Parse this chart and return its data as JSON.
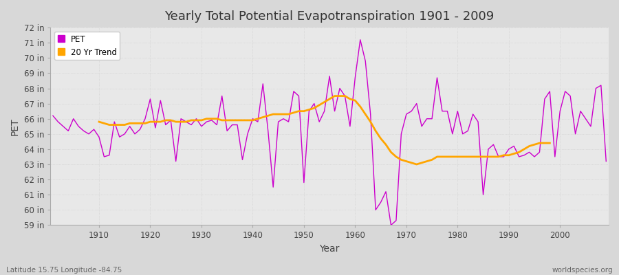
{
  "title": "Yearly Total Potential Evapotranspiration 1901 - 2009",
  "xlabel": "Year",
  "ylabel": "PET",
  "subtitle_left": "Latitude 15.75 Longitude -84.75",
  "subtitle_right": "worldspecies.org",
  "background_color": "#d8d8d8",
  "plot_bg_color": "#e8e8e8",
  "pet_color": "#cc00cc",
  "trend_color": "#ffa500",
  "ylim": [
    59,
    72
  ],
  "ytick_labels": [
    "59 in",
    "60 in",
    "61 in",
    "62 in",
    "63 in",
    "64 in",
    "65 in",
    "66 in",
    "67 in",
    "68 in",
    "69 in",
    "70 in",
    "71 in",
    "72 in"
  ],
  "ytick_values": [
    59,
    60,
    61,
    62,
    63,
    64,
    65,
    66,
    67,
    68,
    69,
    70,
    71,
    72
  ],
  "years": [
    1901,
    1902,
    1903,
    1904,
    1905,
    1906,
    1907,
    1908,
    1909,
    1910,
    1911,
    1912,
    1913,
    1914,
    1915,
    1916,
    1917,
    1918,
    1919,
    1920,
    1921,
    1922,
    1923,
    1924,
    1925,
    1926,
    1927,
    1928,
    1929,
    1930,
    1931,
    1932,
    1933,
    1934,
    1935,
    1936,
    1937,
    1938,
    1939,
    1940,
    1941,
    1942,
    1943,
    1944,
    1945,
    1946,
    1947,
    1948,
    1949,
    1950,
    1951,
    1952,
    1953,
    1954,
    1955,
    1956,
    1957,
    1958,
    1959,
    1960,
    1961,
    1962,
    1963,
    1964,
    1965,
    1966,
    1967,
    1968,
    1969,
    1970,
    1971,
    1972,
    1973,
    1974,
    1975,
    1976,
    1977,
    1978,
    1979,
    1980,
    1981,
    1982,
    1983,
    1984,
    1985,
    1986,
    1987,
    1988,
    1989,
    1990,
    1991,
    1992,
    1993,
    1994,
    1995,
    1996,
    1997,
    1998,
    1999,
    2000,
    2001,
    2002,
    2003,
    2004,
    2005,
    2006,
    2007,
    2008,
    2009
  ],
  "pet_values": [
    66.2,
    65.8,
    65.5,
    65.2,
    66.0,
    65.5,
    65.2,
    65.0,
    65.3,
    64.8,
    63.5,
    63.6,
    65.8,
    64.8,
    65.0,
    65.5,
    65.0,
    65.3,
    66.0,
    67.3,
    65.4,
    67.2,
    65.6,
    65.9,
    63.2,
    66.0,
    65.8,
    65.6,
    66.0,
    65.5,
    65.8,
    65.9,
    65.6,
    67.5,
    65.2,
    65.6,
    65.6,
    63.3,
    65.0,
    66.0,
    65.8,
    68.3,
    65.2,
    61.5,
    65.8,
    66.0,
    65.8,
    67.8,
    67.5,
    61.8,
    66.5,
    67.0,
    65.8,
    66.5,
    68.8,
    66.5,
    68.0,
    67.5,
    65.5,
    68.7,
    71.2,
    69.8,
    66.3,
    60.0,
    60.5,
    61.2,
    59.0,
    59.3,
    65.0,
    66.3,
    66.5,
    67.0,
    65.5,
    66.0,
    66.0,
    68.7,
    66.5,
    66.5,
    65.0,
    66.5,
    65.0,
    65.2,
    66.3,
    65.8,
    61.0,
    64.0,
    64.3,
    63.5,
    63.5,
    64.0,
    64.2,
    63.5,
    63.6,
    63.8,
    63.5,
    63.8,
    67.3,
    67.8,
    63.5,
    66.5,
    67.8,
    67.5,
    65.0,
    66.5,
    66.0,
    65.5,
    68.0,
    68.2,
    63.2
  ],
  "trend_values": [
    null,
    null,
    null,
    null,
    null,
    null,
    null,
    null,
    null,
    65.8,
    65.7,
    65.6,
    65.6,
    65.6,
    65.6,
    65.7,
    65.7,
    65.7,
    65.7,
    65.8,
    65.8,
    65.8,
    65.9,
    65.9,
    65.8,
    65.8,
    65.8,
    65.9,
    65.9,
    65.9,
    66.0,
    66.0,
    66.0,
    65.9,
    65.9,
    65.9,
    65.9,
    65.9,
    65.9,
    65.9,
    66.0,
    66.1,
    66.2,
    66.3,
    66.3,
    66.3,
    66.3,
    66.4,
    66.5,
    66.5,
    66.6,
    66.7,
    66.9,
    67.1,
    67.3,
    67.5,
    67.5,
    67.5,
    67.3,
    67.2,
    66.8,
    66.3,
    65.8,
    65.2,
    64.7,
    64.3,
    63.8,
    63.5,
    63.3,
    63.2,
    63.1,
    63.0,
    63.1,
    63.2,
    63.3,
    63.5,
    63.5,
    63.5,
    63.5,
    63.5,
    63.5,
    63.5,
    63.5,
    63.5,
    63.5,
    63.5,
    63.5,
    63.5,
    63.6,
    63.6,
    63.7,
    63.8,
    64.0,
    64.2,
    64.3,
    64.4,
    64.4,
    64.4,
    null,
    null,
    null,
    null,
    null,
    null,
    null,
    null,
    null,
    null
  ]
}
